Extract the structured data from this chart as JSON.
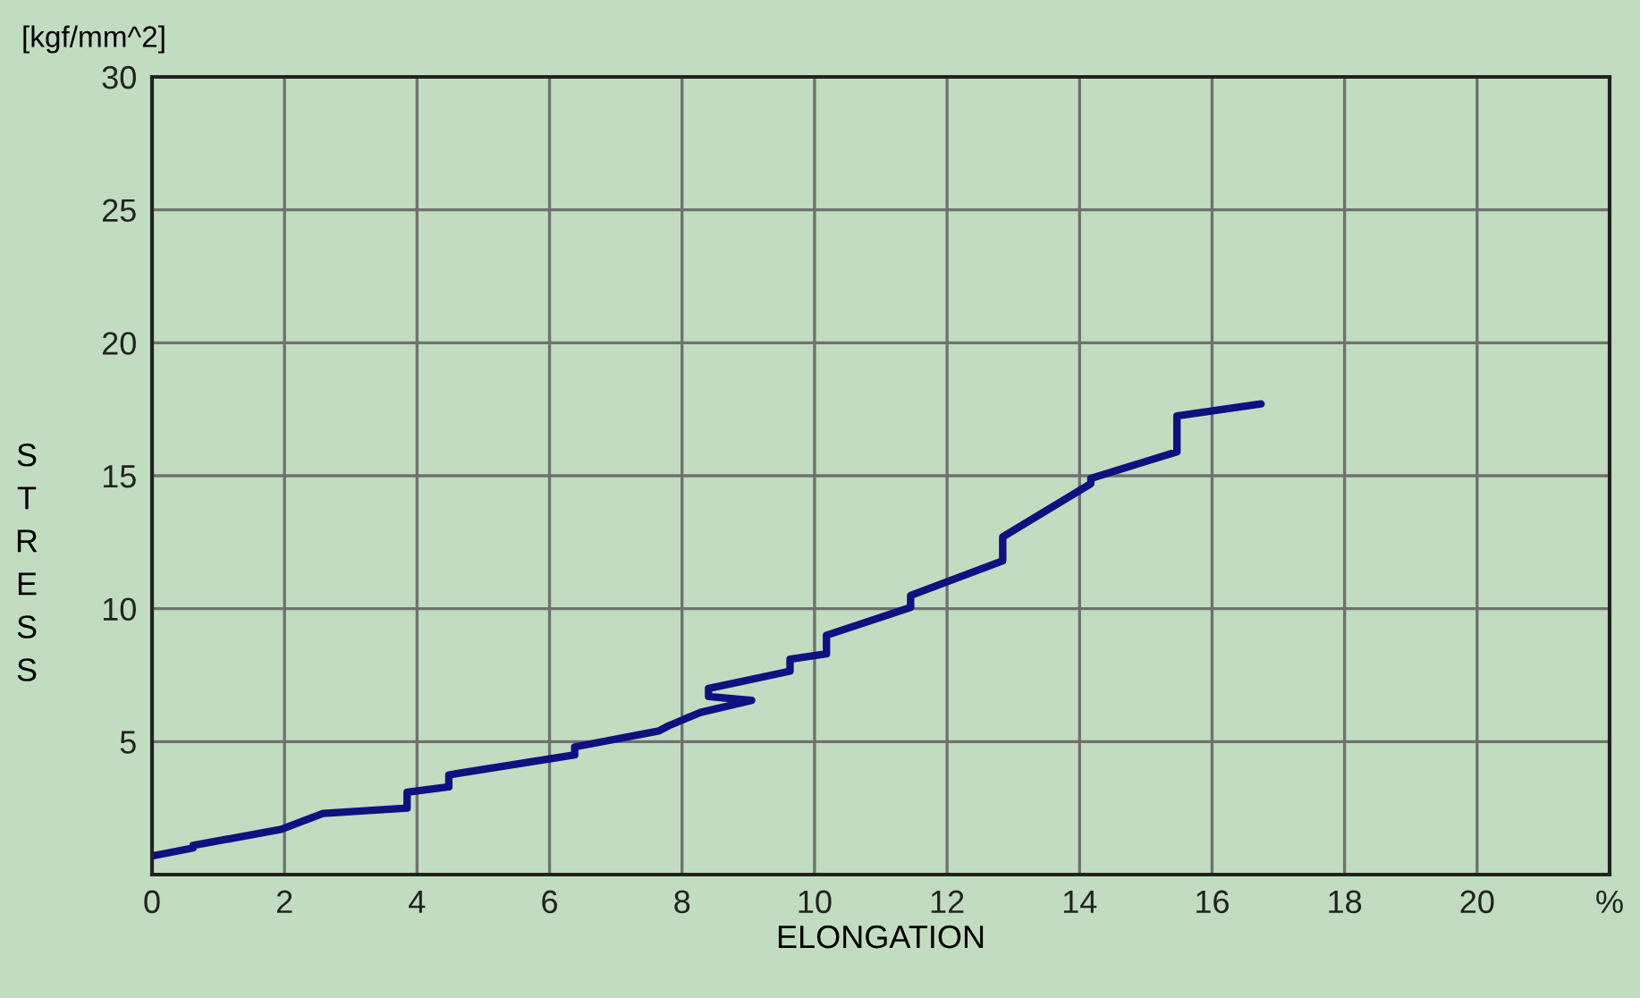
{
  "chart_data": {
    "type": "line",
    "ylabel": "S\nT\nR\nE\nS\nS",
    "xlabel": "ELONGATION",
    "annotations": [
      "[kgf/mm^2]"
    ],
    "series": [
      {
        "color": "#101080",
        "x": [
          0,
          0.62,
          0.62,
          1.95,
          2.58,
          3.85,
          3.85,
          4.48,
          4.48,
          6.38,
          6.38,
          7.65,
          7.8,
          8.28,
          9.05,
          8.4,
          8.4,
          9.63,
          9.63,
          10.18,
          10.18,
          11.45,
          11.45,
          12.84,
          12.84,
          14.17,
          14.17,
          15.47,
          15.47,
          16.74
        ],
        "values": [
          0.7,
          1.0,
          1.1,
          1.7,
          2.3,
          2.5,
          3.1,
          3.3,
          3.75,
          4.5,
          4.8,
          5.4,
          5.6,
          6.1,
          6.55,
          6.7,
          7.0,
          7.65,
          8.1,
          8.3,
          9.0,
          10.05,
          10.5,
          11.8,
          12.7,
          14.7,
          14.9,
          15.9,
          17.25,
          17.7
        ]
      }
    ],
    "xlim": [
      0,
      22
    ],
    "xticks": [
      0,
      2,
      4,
      6,
      8,
      10,
      12,
      14,
      16,
      18,
      20,
      {
        "value": 22,
        "label": "%"
      }
    ],
    "ylim": [
      0,
      30
    ],
    "yticks": [
      {
        "value": 0,
        "label": null
      },
      5,
      10,
      15,
      20,
      25,
      30
    ],
    "grid": true,
    "line_style": "solid",
    "marker": "none"
  }
}
